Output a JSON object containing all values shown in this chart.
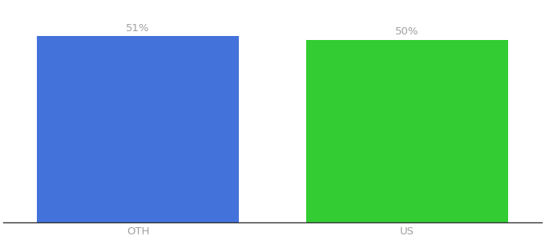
{
  "categories": [
    "OTH",
    "US"
  ],
  "values": [
    51,
    50
  ],
  "bar_colors": [
    "#4472db",
    "#33cc33"
  ],
  "label_texts": [
    "51%",
    "50%"
  ],
  "label_color": "#a0a0a0",
  "label_fontsize": 9.5,
  "tick_fontsize": 9.5,
  "tick_color": "#a0a0a0",
  "background_color": "#ffffff",
  "ylim": [
    0,
    60
  ],
  "bar_width": 0.75,
  "figsize": [
    6.8,
    3.0
  ],
  "dpi": 100,
  "xlim": [
    -0.5,
    1.5
  ]
}
